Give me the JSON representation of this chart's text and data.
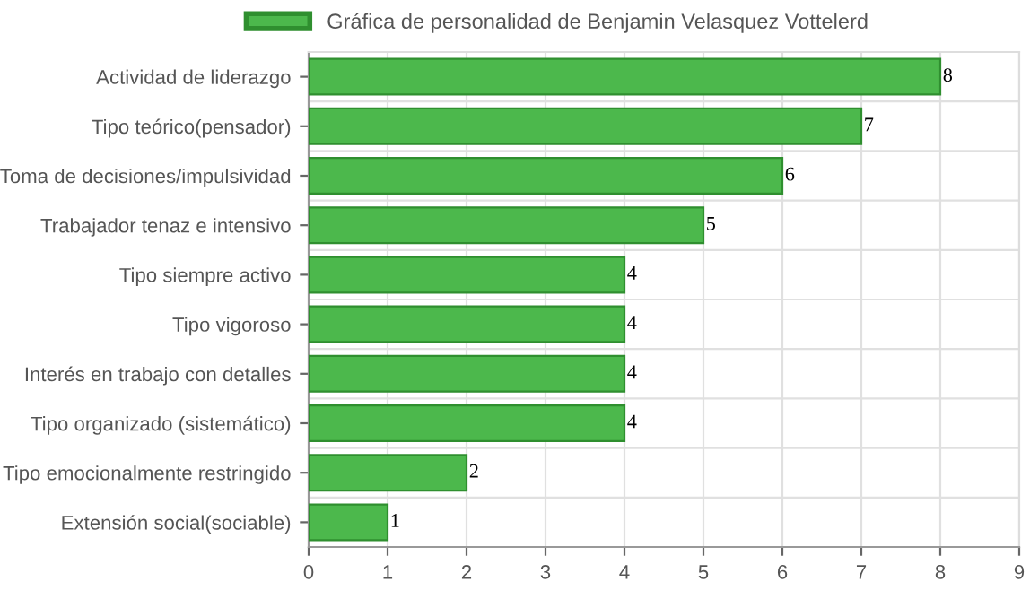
{
  "chart_data": {
    "type": "bar",
    "orientation": "horizontal",
    "categories": [
      "Actividad de liderazgo",
      "Tipo teórico(pensador)",
      "Toma de decisiones/impulsividad",
      "Trabajador tenaz e intensivo",
      "Tipo siempre activo",
      "Tipo vigoroso",
      "Interés en trabajo con detalles",
      "Tipo organizado (sistemático)",
      "Tipo emocionalmente restringido",
      "Extensión social(sociable)"
    ],
    "series": [
      {
        "name": "Gráfica de personalidad de Benjamin Velasquez Vottelerd",
        "color": "#4cb84c",
        "values": [
          8,
          7,
          6,
          5,
          4,
          4,
          4,
          4,
          2,
          1
        ]
      }
    ],
    "xlim": [
      0,
      9
    ],
    "xticks": [
      0,
      1,
      2,
      3,
      4,
      5,
      6,
      7,
      8,
      9
    ],
    "grid": true,
    "legend": "top",
    "data_labels": true
  }
}
